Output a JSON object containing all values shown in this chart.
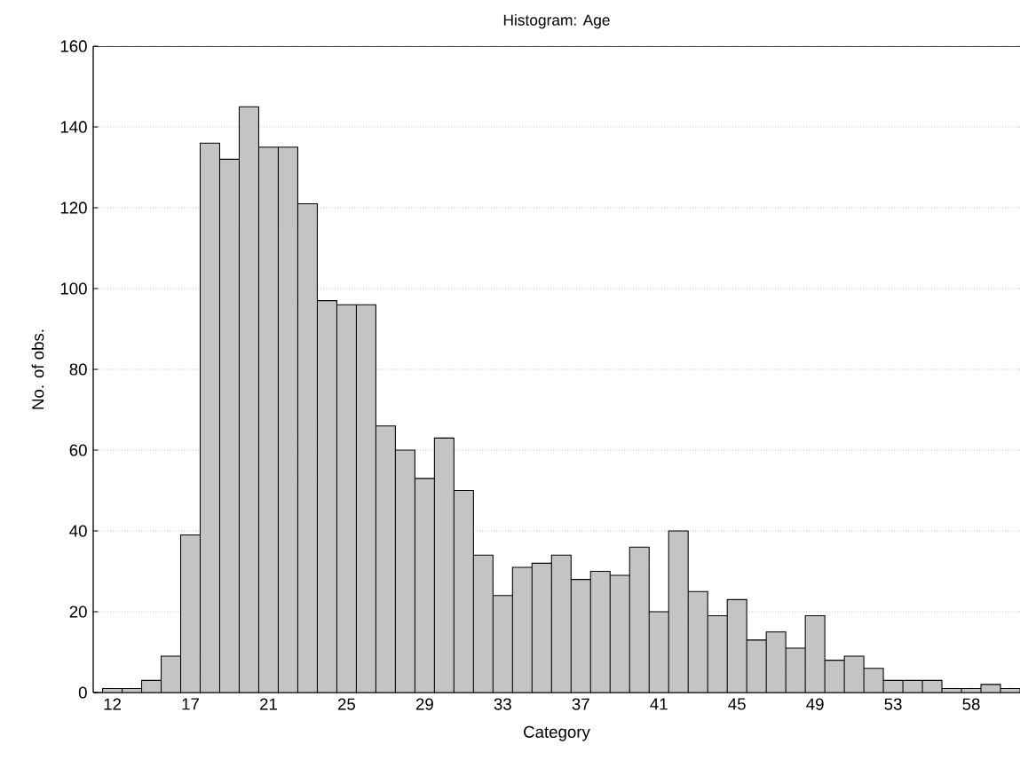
{
  "chart_data": {
    "type": "bar",
    "title": "Histogram: Age",
    "xlabel": "Category",
    "ylabel": "No. of obs.",
    "categories": [
      "12",
      null,
      null,
      null,
      "17",
      null,
      null,
      null,
      "21",
      null,
      null,
      null,
      "25",
      null,
      null,
      null,
      "29",
      null,
      null,
      null,
      "33",
      null,
      null,
      null,
      "37",
      null,
      null,
      null,
      "41",
      null,
      null,
      null,
      "45",
      null,
      null,
      null,
      "49",
      null,
      null,
      null,
      "53",
      null,
      null,
      null,
      "58",
      null,
      null
    ],
    "values": [
      1,
      1,
      3,
      9,
      39,
      136,
      132,
      145,
      135,
      135,
      121,
      97,
      96,
      96,
      66,
      60,
      53,
      63,
      50,
      34,
      24,
      31,
      32,
      34,
      28,
      30,
      29,
      36,
      20,
      40,
      25,
      19,
      23,
      13,
      15,
      11,
      19,
      8,
      9,
      6,
      3,
      3,
      3,
      1,
      1,
      2,
      1
    ],
    "color": "#c4c4c4",
    "ylim": [
      0,
      160
    ],
    "yticks": [
      0,
      20,
      40,
      60,
      80,
      100,
      120,
      140,
      160
    ],
    "grid": "y"
  }
}
